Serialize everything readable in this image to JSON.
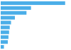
{
  "chart_data": {
    "type": "bar",
    "orientation": "horizontal",
    "values": [
      100,
      47,
      40,
      22,
      16,
      14,
      13,
      12,
      11,
      5
    ],
    "color": "#4baee8",
    "xlim": [
      0,
      108
    ],
    "tick_labels": false
  }
}
